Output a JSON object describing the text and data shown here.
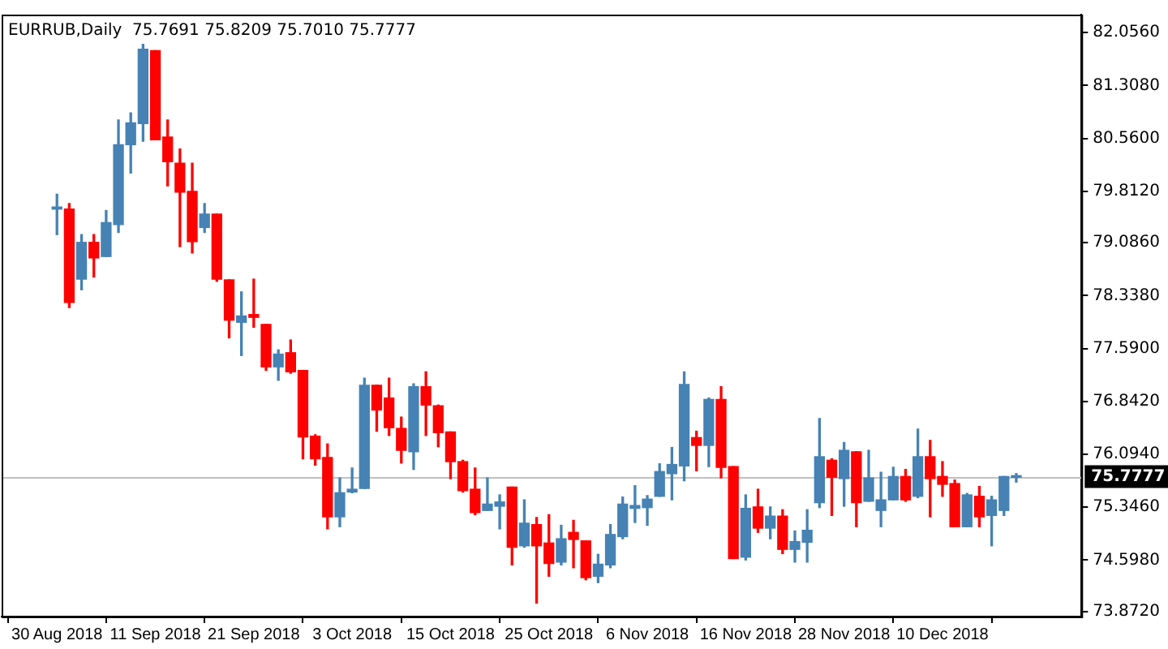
{
  "chart_data": {
    "type": "candlestick",
    "title": "EURRUB,Daily  75.7691 75.8209 75.7010 75.7777",
    "categories": [
      "30 Aug 2018",
      null,
      null,
      null,
      null,
      null,
      null,
      null,
      "11 Sep 2018",
      null,
      null,
      null,
      null,
      null,
      null,
      null,
      "21 Sep 2018",
      null,
      null,
      null,
      null,
      null,
      null,
      null,
      "3 Oct 2018",
      null,
      null,
      null,
      null,
      null,
      null,
      null,
      "15 Oct 2018",
      null,
      null,
      null,
      null,
      null,
      null,
      null,
      "25 Oct 2018",
      null,
      null,
      null,
      null,
      null,
      null,
      null,
      "6 Nov 2018",
      null,
      null,
      null,
      null,
      null,
      null,
      null,
      "16 Nov 2018",
      null,
      null,
      null,
      null,
      null,
      null,
      null,
      "28 Nov 2018",
      null,
      null,
      null,
      null,
      null,
      null,
      null,
      "10 Dec 2018",
      null,
      null,
      null,
      null,
      null,
      null
    ],
    "ohlc": [
      [
        79.56,
        79.77,
        79.2,
        79.59
      ],
      [
        79.56,
        79.64,
        78.17,
        78.24
      ],
      [
        78.57,
        79.2,
        78.42,
        79.09
      ],
      [
        79.09,
        79.2,
        78.6,
        78.87
      ],
      [
        78.89,
        79.54,
        78.89,
        79.37
      ],
      [
        79.34,
        80.82,
        79.23,
        80.47
      ],
      [
        80.47,
        80.92,
        80.07,
        80.78
      ],
      [
        80.77,
        81.89,
        80.52,
        81.82
      ],
      [
        81.8,
        81.8,
        80.54,
        80.54
      ],
      [
        80.58,
        80.82,
        79.89,
        80.23
      ],
      [
        80.21,
        80.41,
        79.03,
        79.8
      ],
      [
        79.81,
        80.21,
        78.94,
        79.1
      ],
      [
        79.3,
        79.64,
        79.23,
        79.49
      ],
      [
        79.49,
        79.49,
        78.54,
        78.57
      ],
      [
        78.56,
        78.56,
        77.74,
        77.99
      ],
      [
        77.96,
        78.39,
        77.49,
        78.05
      ],
      [
        78.07,
        78.57,
        77.89,
        78.03
      ],
      [
        77.93,
        77.93,
        77.28,
        77.33
      ],
      [
        77.33,
        77.57,
        77.14,
        77.51
      ],
      [
        77.53,
        77.71,
        77.24,
        77.26
      ],
      [
        77.28,
        77.28,
        76.03,
        76.34
      ],
      [
        76.35,
        76.37,
        75.94,
        76.03
      ],
      [
        76.05,
        76.24,
        75.04,
        75.21
      ],
      [
        75.21,
        75.76,
        75.07,
        75.55
      ],
      [
        75.56,
        75.9,
        75.55,
        75.6
      ],
      [
        75.61,
        77.17,
        75.61,
        77.07
      ],
      [
        77.07,
        77.07,
        76.42,
        76.72
      ],
      [
        76.89,
        77.17,
        76.36,
        76.47
      ],
      [
        76.46,
        76.62,
        75.97,
        76.15
      ],
      [
        76.13,
        77.09,
        75.88,
        77.05
      ],
      [
        77.05,
        77.26,
        76.36,
        76.79
      ],
      [
        76.78,
        76.79,
        76.2,
        76.4
      ],
      [
        76.41,
        76.41,
        75.75,
        75.99
      ],
      [
        75.99,
        76.01,
        75.56,
        75.58
      ],
      [
        75.6,
        75.9,
        75.24,
        75.27
      ],
      [
        75.3,
        75.76,
        75.3,
        75.39
      ],
      [
        75.36,
        75.52,
        75.04,
        75.42
      ],
      [
        75.63,
        75.63,
        74.53,
        74.78
      ],
      [
        74.8,
        75.45,
        74.78,
        75.12
      ],
      [
        75.1,
        75.2,
        73.99,
        74.8
      ],
      [
        74.84,
        75.24,
        74.37,
        74.55
      ],
      [
        74.57,
        75.09,
        74.53,
        74.9
      ],
      [
        74.99,
        75.16,
        74.49,
        74.89
      ],
      [
        74.87,
        74.87,
        74.32,
        74.35
      ],
      [
        74.37,
        74.68,
        74.28,
        74.54
      ],
      [
        74.53,
        75.1,
        74.49,
        74.96
      ],
      [
        74.93,
        75.49,
        74.9,
        75.39
      ],
      [
        75.33,
        75.65,
        75.13,
        75.37
      ],
      [
        75.34,
        75.51,
        75.09,
        75.46
      ],
      [
        75.5,
        75.96,
        75.5,
        75.85
      ],
      [
        75.82,
        76.19,
        75.45,
        75.95
      ],
      [
        75.93,
        77.26,
        75.72,
        77.08
      ],
      [
        76.33,
        76.42,
        75.86,
        76.22
      ],
      [
        76.22,
        76.89,
        75.92,
        76.87
      ],
      [
        76.87,
        77.05,
        75.76,
        75.91
      ],
      [
        75.92,
        75.92,
        74.62,
        74.62
      ],
      [
        74.64,
        75.52,
        74.6,
        75.33
      ],
      [
        75.35,
        75.6,
        74.99,
        75.05
      ],
      [
        75.05,
        75.35,
        74.9,
        75.22
      ],
      [
        75.22,
        75.31,
        74.69,
        74.75
      ],
      [
        74.75,
        75.01,
        74.57,
        74.86
      ],
      [
        74.85,
        75.31,
        74.57,
        75.02
      ],
      [
        75.41,
        76.6,
        75.34,
        76.06
      ],
      [
        76.01,
        76.03,
        75.23,
        75.77
      ],
      [
        75.75,
        76.26,
        75.36,
        76.15
      ],
      [
        76.13,
        76.13,
        75.07,
        75.41
      ],
      [
        75.43,
        76.15,
        75.43,
        75.76
      ],
      [
        75.3,
        75.84,
        75.07,
        75.45
      ],
      [
        75.45,
        75.91,
        75.45,
        75.78
      ],
      [
        75.78,
        75.88,
        75.43,
        75.45
      ],
      [
        75.5,
        76.45,
        75.48,
        76.06
      ],
      [
        76.06,
        76.29,
        75.21,
        75.75
      ],
      [
        75.78,
        75.99,
        75.5,
        75.67
      ],
      [
        75.68,
        75.73,
        75.07,
        75.07
      ],
      [
        75.07,
        75.54,
        75.07,
        75.52
      ],
      [
        75.5,
        75.64,
        75.07,
        75.21
      ],
      [
        75.23,
        75.5,
        74.8,
        75.45
      ],
      [
        75.3,
        75.78,
        75.23,
        75.78
      ],
      [
        75.7691,
        75.8209,
        75.701,
        75.7777
      ]
    ],
    "colors": [
      "#4682b4",
      "#ff0000",
      "#4682b4",
      "#ff0000",
      "#4682b4",
      "#4682b4",
      "#4682b4",
      "#4682b4",
      "#ff0000",
      "#ff0000",
      "#ff0000",
      "#ff0000",
      "#4682b4",
      "#ff0000",
      "#ff0000",
      "#4682b4",
      "#ff0000",
      "#ff0000",
      "#4682b4",
      "#ff0000",
      "#ff0000",
      "#ff0000",
      "#ff0000",
      "#4682b4",
      "#4682b4",
      "#4682b4",
      "#ff0000",
      "#ff0000",
      "#ff0000",
      "#4682b4",
      "#ff0000",
      "#ff0000",
      "#ff0000",
      "#ff0000",
      "#ff0000",
      "#4682b4",
      "#4682b4",
      "#ff0000",
      "#4682b4",
      "#ff0000",
      "#ff0000",
      "#4682b4",
      "#ff0000",
      "#ff0000",
      "#4682b4",
      "#4682b4",
      "#4682b4",
      "#4682b4",
      "#4682b4",
      "#4682b4",
      "#4682b4",
      "#4682b4",
      "#ff0000",
      "#4682b4",
      "#ff0000",
      "#ff0000",
      "#4682b4",
      "#ff0000",
      "#4682b4",
      "#ff0000",
      "#4682b4",
      "#4682b4",
      "#4682b4",
      "#ff0000",
      "#4682b4",
      "#ff0000",
      "#4682b4",
      "#4682b4",
      "#4682b4",
      "#ff0000",
      "#4682b4",
      "#ff0000",
      "#ff0000",
      "#ff0000",
      "#4682b4",
      "#ff0000",
      "#4682b4",
      "#4682b4",
      "#4682b4"
    ],
    "ylim": [
      73.8,
      82.31
    ],
    "yticks": [
      {
        "value": 73.872,
        "label": "73.8720"
      },
      {
        "value": 74.598,
        "label": "74.5980"
      },
      {
        "value": 75.346,
        "label": "75.3460"
      },
      {
        "value": 76.094,
        "label": "76.0940"
      },
      {
        "value": 76.842,
        "label": "76.8420"
      },
      {
        "value": 77.59,
        "label": "77.5900"
      },
      {
        "value": 78.338,
        "label": "78.3380"
      },
      {
        "value": 79.086,
        "label": "79.0860"
      },
      {
        "value": 79.812,
        "label": "79.8120"
      },
      {
        "value": 80.56,
        "label": "80.5600"
      },
      {
        "value": 81.308,
        "label": "81.3080"
      },
      {
        "value": 82.056,
        "label": "82.0560"
      }
    ],
    "ref_lines": [
      {
        "axis": "y",
        "value": 75.7777,
        "label": "75.7777",
        "color": "#c0c0c0"
      }
    ],
    "legend": false
  }
}
